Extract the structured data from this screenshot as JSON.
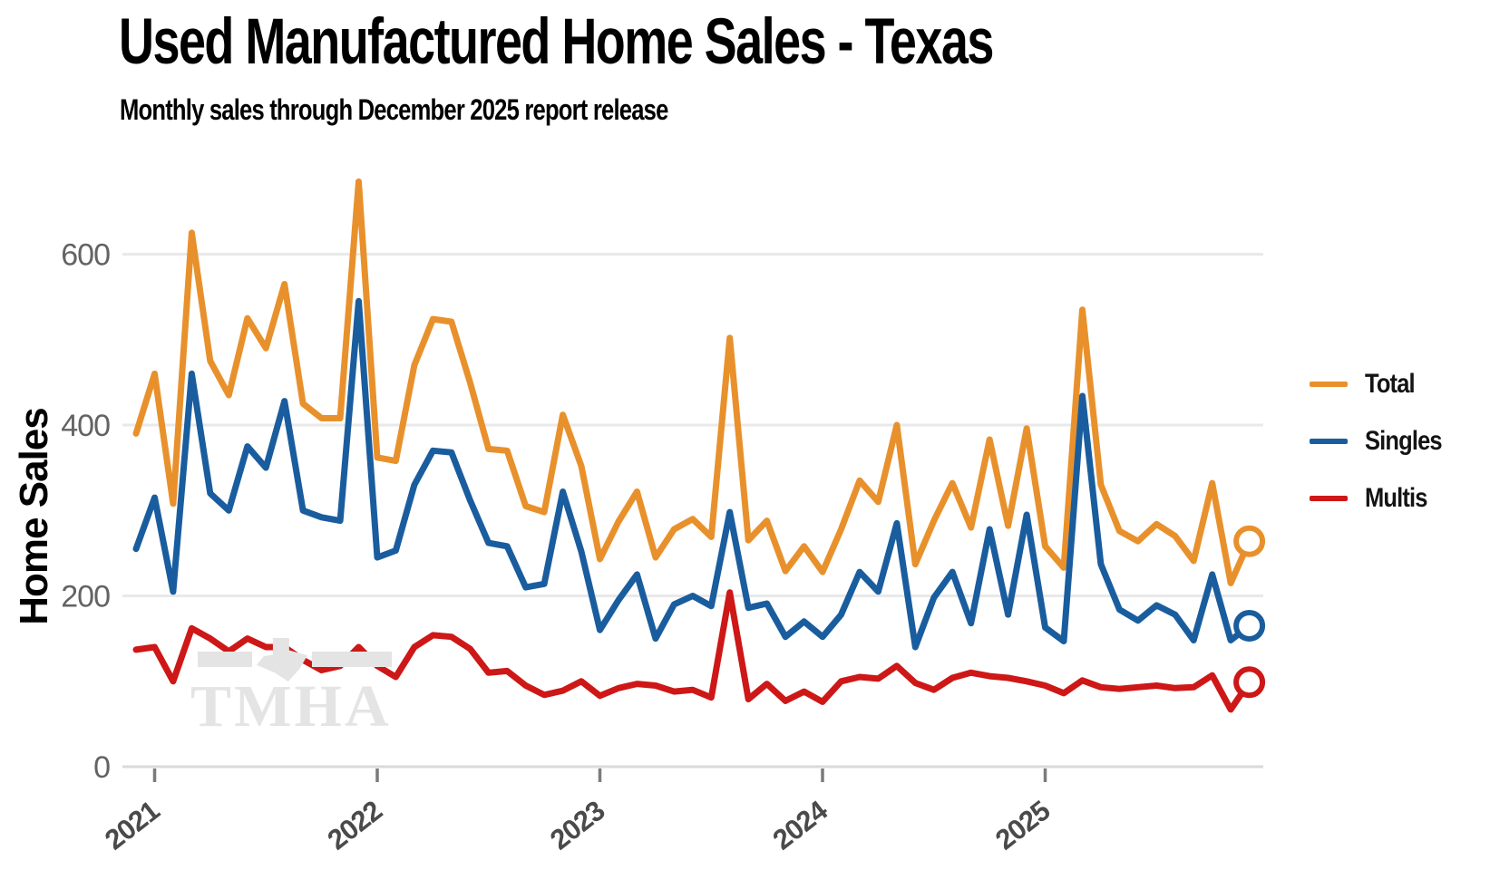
{
  "header": {
    "title": "Used Manufactured Home Sales - Texas",
    "subtitle": "Monthly sales through December 2025 report release"
  },
  "watermark": {
    "text": "TMHA"
  },
  "chart_data": {
    "type": "line",
    "title": "Used Manufactured Home Sales - Texas",
    "subtitle": "Monthly sales through December 2025 report release",
    "ylabel": "Home Sales",
    "xlabel": "",
    "ylim": [
      0,
      700
    ],
    "grid": "horizontal",
    "legend_position": "right",
    "last_point_marker": "open-circle",
    "yticks": [
      0,
      200,
      400,
      600
    ],
    "xticks": [
      {
        "label": "2021",
        "month_index": 1
      },
      {
        "label": "2022",
        "month_index": 13
      },
      {
        "label": "2023",
        "month_index": 25
      },
      {
        "label": "2024",
        "month_index": 37
      },
      {
        "label": "2025",
        "month_index": 49
      }
    ],
    "x_months": [
      "2020-12",
      "2021-01",
      "2021-02",
      "2021-03",
      "2021-04",
      "2021-05",
      "2021-06",
      "2021-07",
      "2021-08",
      "2021-09",
      "2021-10",
      "2021-11",
      "2021-12",
      "2022-01",
      "2022-02",
      "2022-03",
      "2022-04",
      "2022-05",
      "2022-06",
      "2022-07",
      "2022-08",
      "2022-09",
      "2022-10",
      "2022-11",
      "2022-12",
      "2023-01",
      "2023-02",
      "2023-03",
      "2023-04",
      "2023-05",
      "2023-06",
      "2023-07",
      "2023-08",
      "2023-09",
      "2023-10",
      "2023-11",
      "2023-12",
      "2024-01",
      "2024-02",
      "2024-03",
      "2024-04",
      "2024-05",
      "2024-06",
      "2024-07",
      "2024-08",
      "2024-09",
      "2024-10",
      "2024-11",
      "2024-12",
      "2025-01",
      "2025-02",
      "2025-03",
      "2025-04",
      "2025-05",
      "2025-06",
      "2025-07",
      "2025-08",
      "2025-09",
      "2025-10",
      "2025-11",
      "2025-12"
    ],
    "series": [
      {
        "name": "Total",
        "color": "#E8912C",
        "values": [
          390,
          460,
          308,
          625,
          475,
          435,
          525,
          490,
          565,
          425,
          408,
          408,
          685,
          362,
          358,
          470,
          524,
          521,
          450,
          372,
          370,
          305,
          298,
          412,
          352,
          243,
          287,
          322,
          245,
          278,
          290,
          269,
          502,
          265,
          288,
          229,
          258,
          228,
          278,
          335,
          310,
          400,
          237,
          288,
          332,
          280,
          383,
          282,
          396,
          258,
          233,
          535,
          330,
          276,
          264,
          284,
          270,
          241,
          332,
          215,
          264
        ]
      },
      {
        "name": "Singles",
        "color": "#1A5D9E",
        "values": [
          255,
          315,
          205,
          460,
          320,
          300,
          375,
          350,
          428,
          300,
          292,
          288,
          545,
          245,
          253,
          330,
          370,
          368,
          312,
          262,
          258,
          210,
          214,
          322,
          252,
          160,
          195,
          225,
          150,
          190,
          200,
          188,
          298,
          186,
          191,
          152,
          170,
          152,
          178,
          228,
          205,
          285,
          140,
          198,
          228,
          168,
          278,
          178,
          295,
          163,
          147,
          434,
          237,
          184,
          171,
          189,
          178,
          148,
          225,
          148,
          165
        ]
      },
      {
        "name": "Multis",
        "color": "#CE1717",
        "values": [
          137,
          140,
          100,
          162,
          150,
          135,
          150,
          140,
          140,
          125,
          113,
          118,
          140,
          118,
          105,
          140,
          154,
          152,
          138,
          110,
          112,
          95,
          84,
          89,
          100,
          83,
          92,
          97,
          95,
          88,
          90,
          81,
          204,
          79,
          97,
          77,
          88,
          76,
          100,
          105,
          103,
          118,
          98,
          90,
          104,
          110,
          106,
          104,
          100,
          95,
          86,
          101,
          93,
          91,
          93,
          95,
          92,
          93,
          107,
          67,
          99
        ]
      }
    ]
  }
}
